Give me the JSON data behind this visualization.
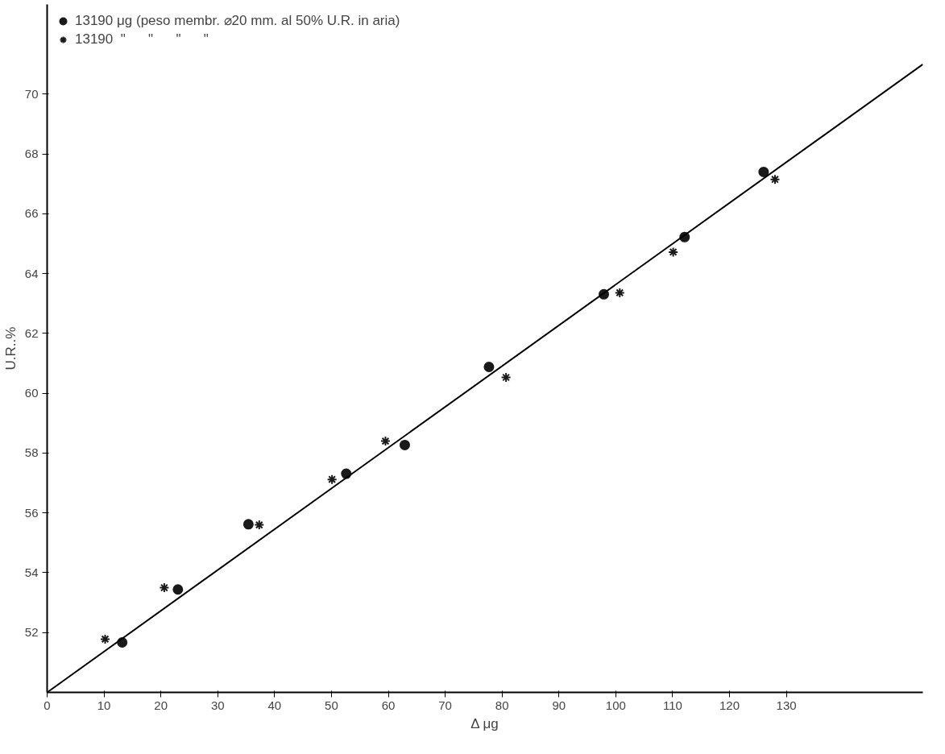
{
  "chart_data": {
    "type": "scatter",
    "xlabel": "Δ μg",
    "ylabel": "U.R..%",
    "xlim": [
      0,
      154
    ],
    "ylim": [
      50,
      73
    ],
    "xticks": [
      0,
      10,
      20,
      30,
      40,
      50,
      60,
      70,
      80,
      90,
      100,
      110,
      120,
      130
    ],
    "yticks": [
      52,
      54,
      56,
      58,
      60,
      62,
      64,
      66,
      68,
      70
    ],
    "grid": false,
    "legend": "top left",
    "series": [
      {
        "name": "13190 μg (peso membr. ⌀20 mm. al 50% U.R. in aria)",
        "color": "#1a1a1a",
        "marker": "circle",
        "x": [
          13.2,
          23.0,
          35.4,
          52.6,
          62.9,
          77.7,
          97.9,
          112.1,
          126.0
        ],
        "values": [
          51.67,
          53.44,
          55.62,
          57.31,
          58.27,
          60.88,
          63.31,
          65.22,
          67.4
        ]
      },
      {
        "name": "13190  \"      \"      \"      \"",
        "color": "#1a1a1a",
        "marker": "cross",
        "x": [
          10.2,
          20.6,
          37.3,
          50.1,
          59.5,
          80.7,
          100.7,
          110.1,
          128.0
        ],
        "values": [
          51.78,
          53.5,
          55.6,
          57.12,
          58.4,
          60.53,
          63.36,
          64.72,
          67.15
        ]
      },
      {
        "type": "line",
        "color": "#000000",
        "line_style": "solid",
        "x": [
          0,
          154
        ],
        "values": [
          50,
          71
        ]
      }
    ]
  }
}
